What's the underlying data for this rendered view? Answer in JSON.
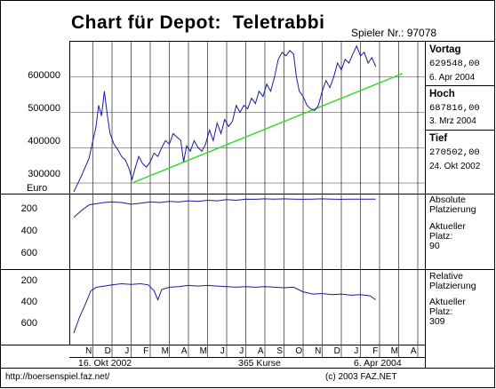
{
  "title_prefix": "Chart für Depot:",
  "depot_name": "Teletrabbi",
  "player_label": "Spieler Nr.:",
  "player_number": "97078",
  "colors": {
    "line": "#1a1aa0",
    "trend": "#33dd33",
    "frame": "#000000",
    "grid": "#000000"
  },
  "stats": {
    "vortag": {
      "label": "Vortag",
      "value": "629548,00",
      "date": "6. Apr 2004"
    },
    "hoch": {
      "label": "Hoch",
      "value": "687816,00",
      "date": "3. Mrz 2004"
    },
    "tief": {
      "label": "Tief",
      "value": "270502,00",
      "date": "24. Okt 2002"
    }
  },
  "panels": {
    "absolute": {
      "label_line1": "Absolute",
      "label_line2": "Platzierung",
      "current_line1": "Aktueller",
      "current_line2": "Platz:",
      "current_value": "90"
    },
    "relative": {
      "label_line1": "Relative",
      "label_line2": "Platzierung",
      "current_line1": "Aktueller",
      "current_line2": "Platz:",
      "current_value": "309"
    }
  },
  "footer": {
    "start_date": "16. Okt 2002",
    "count": "365 Kurse",
    "end_date": "6. Apr 2004",
    "url": "http://boersenspiel.faz.net/",
    "copyright": "(c) 2003 FAZ.NET"
  },
  "chart_data": [
    {
      "type": "line",
      "name": "depot-value",
      "ylabel": "Euro",
      "ylim": [
        270000,
        700000
      ],
      "y_ticks": [
        "300000",
        "400000",
        "500000",
        "600000"
      ],
      "x_months": [
        "N",
        "D",
        "J",
        "F",
        "M",
        "A",
        "M",
        "J",
        "J",
        "A",
        "S",
        "O",
        "N",
        "D",
        "J",
        "F",
        "M",
        "A"
      ],
      "x_start": "16. Okt 2002",
      "x_end": "6. Apr 2004",
      "series_points": [
        [
          0,
          275000
        ],
        [
          0.4,
          320000
        ],
        [
          0.8,
          370000
        ],
        [
          1.0,
          420000
        ],
        [
          1.15,
          455000
        ],
        [
          1.3,
          520000
        ],
        [
          1.45,
          490000
        ],
        [
          1.6,
          560000
        ],
        [
          1.75,
          495000
        ],
        [
          1.9,
          440000
        ],
        [
          2.1,
          410000
        ],
        [
          2.3,
          395000
        ],
        [
          2.5,
          375000
        ],
        [
          2.7,
          365000
        ],
        [
          2.9,
          340000
        ],
        [
          3.05,
          310000
        ],
        [
          3.2,
          340000
        ],
        [
          3.4,
          375000
        ],
        [
          3.6,
          355000
        ],
        [
          3.8,
          345000
        ],
        [
          4.0,
          360000
        ],
        [
          4.2,
          385000
        ],
        [
          4.4,
          375000
        ],
        [
          4.6,
          400000
        ],
        [
          4.8,
          420000
        ],
        [
          5.0,
          410000
        ],
        [
          5.2,
          440000
        ],
        [
          5.4,
          430000
        ],
        [
          5.6,
          420000
        ],
        [
          5.75,
          360000
        ],
        [
          5.9,
          405000
        ],
        [
          6.1,
          390000
        ],
        [
          6.3,
          420000
        ],
        [
          6.5,
          400000
        ],
        [
          6.7,
          390000
        ],
        [
          6.9,
          410000
        ],
        [
          7.1,
          450000
        ],
        [
          7.3,
          420000
        ],
        [
          7.5,
          470000
        ],
        [
          7.7,
          440000
        ],
        [
          7.9,
          480000
        ],
        [
          8.1,
          460000
        ],
        [
          8.3,
          475000
        ],
        [
          8.5,
          520000
        ],
        [
          8.7,
          500000
        ],
        [
          8.9,
          520000
        ],
        [
          9.1,
          510000
        ],
        [
          9.3,
          540000
        ],
        [
          9.5,
          525000
        ],
        [
          9.7,
          560000
        ],
        [
          9.9,
          545000
        ],
        [
          10.1,
          580000
        ],
        [
          10.3,
          560000
        ],
        [
          10.5,
          600000
        ],
        [
          10.7,
          650000
        ],
        [
          10.9,
          670000
        ],
        [
          11.1,
          660000
        ],
        [
          11.3,
          675000
        ],
        [
          11.5,
          665000
        ],
        [
          11.65,
          600000
        ],
        [
          11.8,
          560000
        ],
        [
          12.0,
          545000
        ],
        [
          12.2,
          520000
        ],
        [
          12.4,
          510000
        ],
        [
          12.6,
          505000
        ],
        [
          12.8,
          520000
        ],
        [
          13.0,
          560000
        ],
        [
          13.2,
          590000
        ],
        [
          13.4,
          570000
        ],
        [
          13.6,
          600000
        ],
        [
          13.8,
          640000
        ],
        [
          14.0,
          620000
        ],
        [
          14.2,
          650000
        ],
        [
          14.4,
          640000
        ],
        [
          14.6,
          665000
        ],
        [
          14.8,
          687816
        ],
        [
          15.0,
          660000
        ],
        [
          15.2,
          670000
        ],
        [
          15.4,
          640000
        ],
        [
          15.6,
          655000
        ],
        [
          15.8,
          629548
        ]
      ],
      "trend_line": [
        [
          3.05,
          300000
        ],
        [
          17.2,
          610000
        ]
      ]
    },
    {
      "type": "line",
      "name": "absolute-placement",
      "y_ticks": [
        "200",
        "400",
        "600"
      ],
      "ylim": [
        700,
        50
      ],
      "series_points": [
        [
          0,
          250
        ],
        [
          0.4,
          190
        ],
        [
          0.8,
          140
        ],
        [
          1.2,
          130
        ],
        [
          1.6,
          120
        ],
        [
          2.0,
          115
        ],
        [
          2.5,
          120
        ],
        [
          3.0,
          135
        ],
        [
          3.5,
          125
        ],
        [
          4.0,
          115
        ],
        [
          4.5,
          120
        ],
        [
          5.0,
          110
        ],
        [
          5.5,
          115
        ],
        [
          6.0,
          105
        ],
        [
          6.5,
          110
        ],
        [
          7.0,
          100
        ],
        [
          7.5,
          105
        ],
        [
          8.0,
          95
        ],
        [
          8.5,
          100
        ],
        [
          9.0,
          90
        ],
        [
          9.5,
          92
        ],
        [
          10.0,
          88
        ],
        [
          10.5,
          90
        ],
        [
          11.0,
          88
        ],
        [
          11.5,
          90
        ],
        [
          12.0,
          92
        ],
        [
          12.5,
          90
        ],
        [
          13.0,
          88
        ],
        [
          13.5,
          90
        ],
        [
          14.0,
          92
        ],
        [
          14.5,
          90
        ],
        [
          15.0,
          91
        ],
        [
          15.5,
          90
        ],
        [
          15.8,
          90
        ]
      ]
    },
    {
      "type": "line",
      "name": "relative-placement",
      "y_ticks": [
        "200",
        "400",
        "600"
      ],
      "ylim": [
        700,
        50
      ],
      "series_points": [
        [
          0,
          600
        ],
        [
          0.3,
          460
        ],
        [
          0.6,
          350
        ],
        [
          0.9,
          230
        ],
        [
          1.2,
          200
        ],
        [
          1.6,
          190
        ],
        [
          2.0,
          180
        ],
        [
          2.5,
          170
        ],
        [
          3.0,
          175
        ],
        [
          3.5,
          170
        ],
        [
          3.9,
          180
        ],
        [
          4.2,
          230
        ],
        [
          4.4,
          310
        ],
        [
          4.6,
          220
        ],
        [
          5.0,
          200
        ],
        [
          5.5,
          195
        ],
        [
          6.0,
          185
        ],
        [
          6.5,
          190
        ],
        [
          7.0,
          185
        ],
        [
          7.5,
          190
        ],
        [
          8.0,
          195
        ],
        [
          8.5,
          200
        ],
        [
          9.0,
          195
        ],
        [
          9.5,
          200
        ],
        [
          10.0,
          195
        ],
        [
          10.5,
          200
        ],
        [
          11.0,
          205
        ],
        [
          11.5,
          200
        ],
        [
          12.0,
          240
        ],
        [
          12.5,
          260
        ],
        [
          13.0,
          255
        ],
        [
          13.5,
          265
        ],
        [
          14.0,
          260
        ],
        [
          14.5,
          270
        ],
        [
          15.0,
          265
        ],
        [
          15.5,
          275
        ],
        [
          15.8,
          309
        ]
      ]
    }
  ]
}
